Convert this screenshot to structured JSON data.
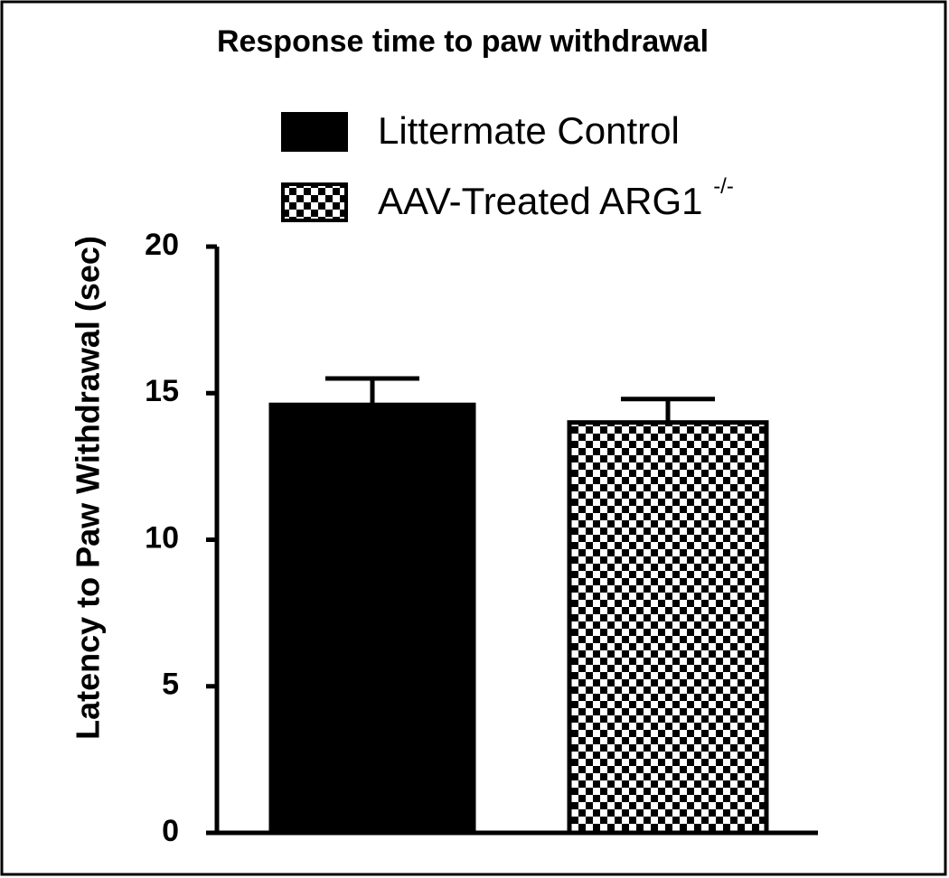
{
  "chart_data": {
    "type": "bar",
    "title": "Response time to paw withdrawal",
    "y_label": "Latency to Paw Withdrawal (sec)",
    "ylim": [
      0,
      20
    ],
    "yticks": [
      0,
      5,
      10,
      15,
      20
    ],
    "series": [
      {
        "name": "Littermate Control",
        "color": "#000000",
        "pattern": "solid",
        "values": [
          14.6
        ],
        "errors": [
          0.9
        ]
      },
      {
        "name": "AAV-Treated ARG1",
        "superscript": "-/-",
        "color": "#000000",
        "pattern": "checker",
        "values": [
          14.0
        ],
        "errors": [
          0.8
        ]
      }
    ]
  }
}
